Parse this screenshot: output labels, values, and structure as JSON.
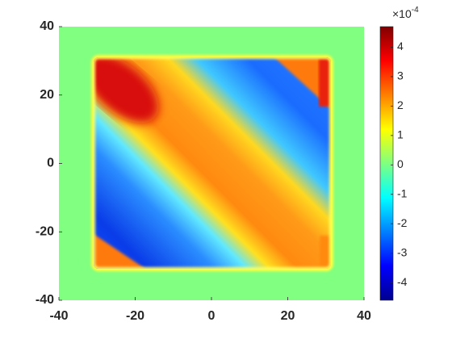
{
  "chart_data": {
    "type": "heatmap",
    "xlim": [
      -40,
      40
    ],
    "ylim": [
      -40,
      40
    ],
    "xticks": [
      -40,
      -20,
      0,
      20,
      40
    ],
    "yticks": [
      -40,
      -20,
      0,
      20,
      40
    ],
    "colorbar": {
      "clim": [
        -4.6,
        4.7
      ],
      "ticks": [
        -4,
        -3,
        -2,
        -1,
        0,
        1,
        2,
        3,
        4
      ],
      "multiplier_base": "×10",
      "multiplier_exponent": "-4",
      "colormap": [
        "#00008f",
        "#0000ff",
        "#0080ff",
        "#00ffff",
        "#80ff80",
        "#ffff00",
        "#ff8000",
        "#ff0000",
        "#800000"
      ]
    }
  }
}
